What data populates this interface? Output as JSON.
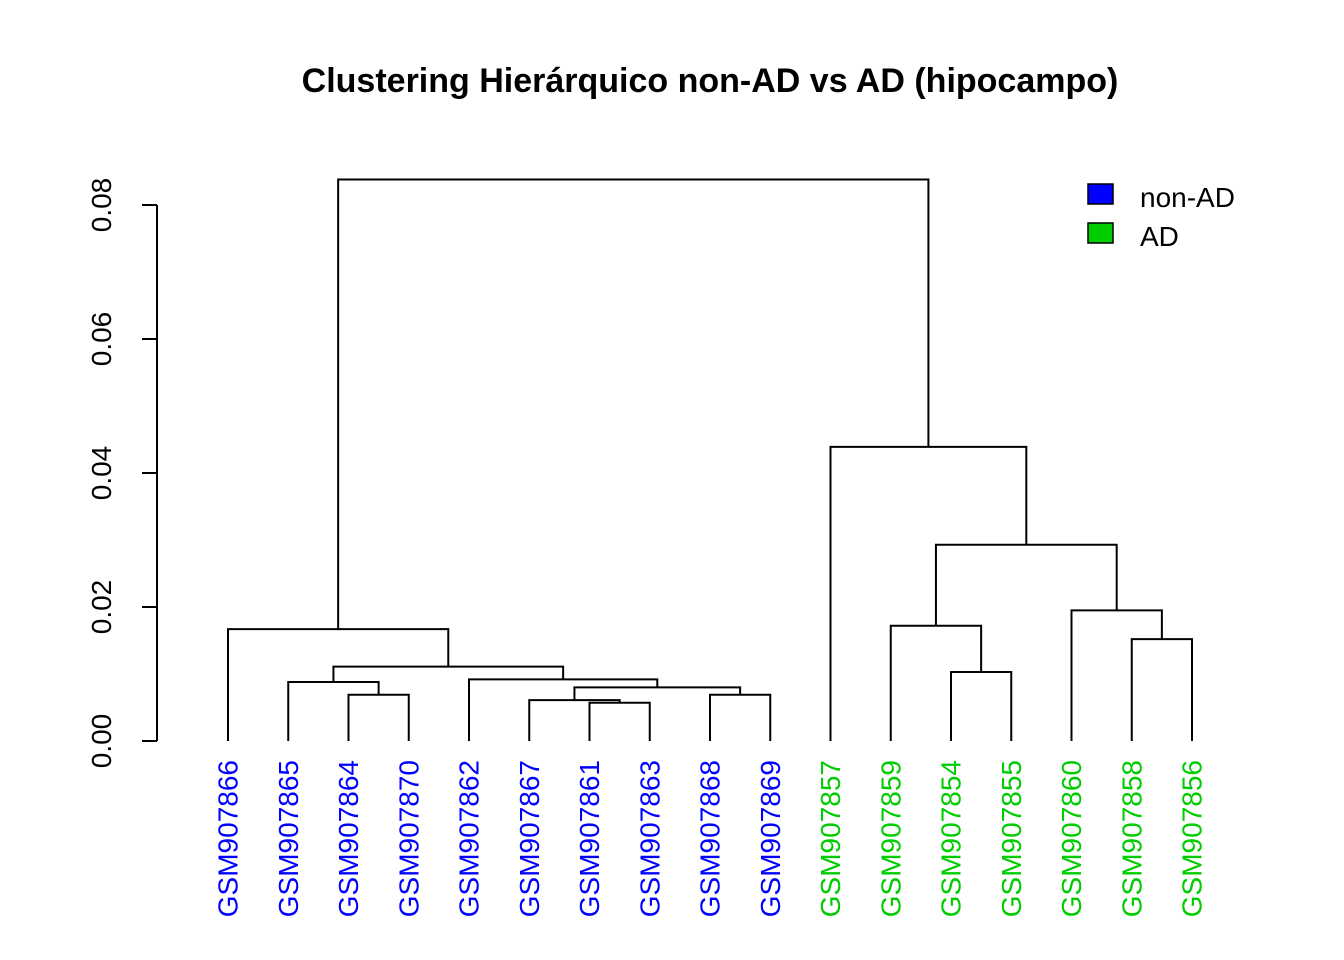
{
  "chart_data": {
    "type": "dendrogram",
    "title": "Clustering Hierárquico non-AD vs AD (hipocampo)",
    "ylim": [
      0,
      0.085
    ],
    "yticks": [
      0.0,
      0.02,
      0.04,
      0.06,
      0.08
    ],
    "ytick_labels": [
      "0.00",
      "0.02",
      "0.04",
      "0.06",
      "0.08"
    ],
    "leaves": [
      {
        "label": "GSM907866",
        "group": "non-AD"
      },
      {
        "label": "GSM907865",
        "group": "non-AD"
      },
      {
        "label": "GSM907864",
        "group": "non-AD"
      },
      {
        "label": "GSM907870",
        "group": "non-AD"
      },
      {
        "label": "GSM907862",
        "group": "non-AD"
      },
      {
        "label": "GSM907867",
        "group": "non-AD"
      },
      {
        "label": "GSM907861",
        "group": "non-AD"
      },
      {
        "label": "GSM907863",
        "group": "non-AD"
      },
      {
        "label": "GSM907868",
        "group": "non-AD"
      },
      {
        "label": "GSM907869",
        "group": "non-AD"
      },
      {
        "label": "GSM907857",
        "group": "AD"
      },
      {
        "label": "GSM907859",
        "group": "AD"
      },
      {
        "label": "GSM907854",
        "group": "AD"
      },
      {
        "label": "GSM907855",
        "group": "AD"
      },
      {
        "label": "GSM907860",
        "group": "AD"
      },
      {
        "label": "GSM907858",
        "group": "AD"
      },
      {
        "label": "GSM907856",
        "group": "AD"
      }
    ],
    "merges": [
      {
        "a": -7,
        "b": -8,
        "height": 0.0057
      },
      {
        "a": -6,
        "b": 1,
        "height": 0.0061
      },
      {
        "a": -4,
        "b": -3,
        "height": 0.0069
      },
      {
        "a": -9,
        "b": -10,
        "height": 0.0069
      },
      {
        "a": 2,
        "b": 4,
        "height": 0.008
      },
      {
        "a": -2,
        "b": 3,
        "height": 0.0088
      },
      {
        "a": -5,
        "b": 5,
        "height": 0.0092
      },
      {
        "a": 6,
        "b": 7,
        "height": 0.0111
      },
      {
        "a": -13,
        "b": -14,
        "height": 0.0103
      },
      {
        "a": -16,
        "b": -17,
        "height": 0.0152
      },
      {
        "a": -1,
        "b": 8,
        "height": 0.0167
      },
      {
        "a": -12,
        "b": 9,
        "height": 0.0172
      },
      {
        "a": -15,
        "b": 10,
        "height": 0.0195
      },
      {
        "a": 12,
        "b": 13,
        "height": 0.0293
      },
      {
        "a": -11,
        "b": 14,
        "height": 0.0439
      },
      {
        "a": 11,
        "b": 15,
        "height": 0.0838
      }
    ],
    "legend": {
      "position": "top-right",
      "entries": [
        {
          "name": "non-AD",
          "color": "#0000FF"
        },
        {
          "name": "AD",
          "color": "#00CD00"
        }
      ]
    },
    "grid": false
  }
}
